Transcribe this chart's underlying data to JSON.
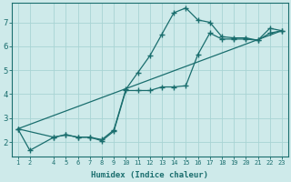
{
  "xlabel": "Humidex (Indice chaleur)",
  "ylabel": "",
  "bg_color": "#ceeaea",
  "grid_color": "#a8d4d4",
  "line_color": "#1a6e6e",
  "x_ticks": [
    1,
    2,
    4,
    5,
    6,
    7,
    8,
    9,
    10,
    11,
    12,
    13,
    14,
    15,
    16,
    17,
    18,
    19,
    20,
    21,
    22,
    23
  ],
  "ylim": [
    1.4,
    7.8
  ],
  "xlim": [
    0.5,
    23.5
  ],
  "line1_x": [
    1,
    2,
    4,
    5,
    6,
    7,
    8,
    9,
    10,
    11,
    12,
    13,
    14,
    15,
    16,
    17,
    18,
    19,
    20,
    21,
    22,
    23
  ],
  "line1_y": [
    2.55,
    1.65,
    2.2,
    2.3,
    2.2,
    2.2,
    2.1,
    2.5,
    4.2,
    4.9,
    5.6,
    6.5,
    7.4,
    7.6,
    7.1,
    7.0,
    6.4,
    6.35,
    6.35,
    6.25,
    6.75,
    6.65
  ],
  "line2_x": [
    1,
    4,
    5,
    6,
    7,
    8,
    9,
    10,
    11,
    12,
    13,
    14,
    15,
    16,
    17,
    18,
    19,
    20,
    21,
    22,
    23
  ],
  "line2_y": [
    2.55,
    2.2,
    2.3,
    2.2,
    2.2,
    2.05,
    2.45,
    4.15,
    4.15,
    4.15,
    4.3,
    4.3,
    4.35,
    5.65,
    6.55,
    6.3,
    6.3,
    6.3,
    6.25,
    6.55,
    6.65
  ],
  "line3_x": [
    1,
    23
  ],
  "line3_y": [
    2.55,
    6.65
  ],
  "yticks": [
    2,
    3,
    4,
    5,
    6,
    7
  ]
}
